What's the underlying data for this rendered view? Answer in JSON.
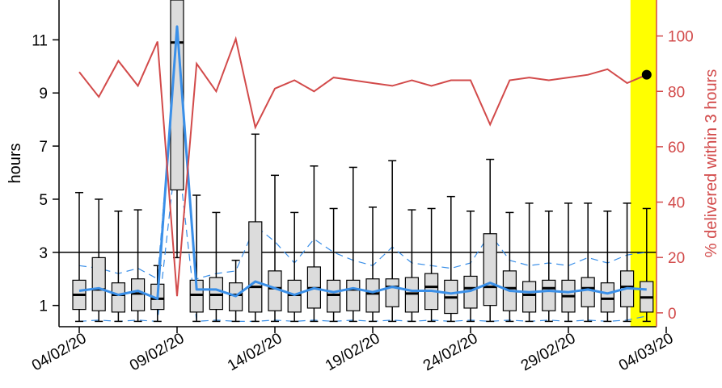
{
  "chart_data": {
    "type": "box",
    "xlabel": "",
    "ylabel": "hours",
    "y2label": "% delivered within 3 hours",
    "ylim": [
      0.2,
      12.5
    ],
    "y2lim": [
      -5,
      113
    ],
    "yticks": [
      1,
      3,
      5,
      7,
      9,
      11
    ],
    "y2ticks": [
      0,
      20,
      40,
      60,
      80,
      100
    ],
    "threshold_hours": 3,
    "x_tick_labels": [
      "04/02/20",
      "09/02/20",
      "14/02/20",
      "19/02/20",
      "24/02/20",
      "29/02/20",
      "04/03/20"
    ],
    "highlight_day": 29,
    "colors": {
      "box_fill": "#dcdcdc",
      "median_line": "#3a8fe8",
      "percent_line": "#d24a4a",
      "highlight": "#ffff00",
      "right_axis": "#d24a4a"
    },
    "boxplots": [
      {
        "low": 0.4,
        "q1": 0.85,
        "median": 1.4,
        "q3": 1.95,
        "high": 5.25
      },
      {
        "low": 0.4,
        "q1": 0.8,
        "median": 1.6,
        "q3": 2.8,
        "high": 5.0
      },
      {
        "low": 0.4,
        "q1": 0.75,
        "median": 1.4,
        "q3": 1.85,
        "high": 4.55
      },
      {
        "low": 0.4,
        "q1": 0.8,
        "median": 1.45,
        "q3": 2.0,
        "high": 4.6
      },
      {
        "low": 0.4,
        "q1": 0.85,
        "median": 1.25,
        "q3": 1.8,
        "high": 2.5
      },
      {
        "low": 2.8,
        "q1": 5.35,
        "median": 10.9,
        "q3": 12.5,
        "high": 12.5
      },
      {
        "low": 0.4,
        "q1": 0.75,
        "median": 1.4,
        "q3": 1.95,
        "high": 5.15
      },
      {
        "low": 0.4,
        "q1": 0.85,
        "median": 1.4,
        "q3": 2.05,
        "high": 4.5
      },
      {
        "low": 0.4,
        "q1": 0.8,
        "median": 1.4,
        "q3": 1.85,
        "high": 2.7
      },
      {
        "low": 0.4,
        "q1": 0.75,
        "median": 1.7,
        "q3": 4.15,
        "high": 7.45
      },
      {
        "low": 0.4,
        "q1": 0.8,
        "median": 1.65,
        "q3": 2.3,
        "high": 5.9
      },
      {
        "low": 0.4,
        "q1": 0.75,
        "median": 1.4,
        "q3": 1.95,
        "high": 4.5
      },
      {
        "low": 0.4,
        "q1": 0.9,
        "median": 1.65,
        "q3": 2.45,
        "high": 6.25
      },
      {
        "low": 0.4,
        "q1": 0.75,
        "median": 1.4,
        "q3": 1.95,
        "high": 4.65
      },
      {
        "low": 0.4,
        "q1": 0.8,
        "median": 1.6,
        "q3": 1.95,
        "high": 6.2
      },
      {
        "low": 0.4,
        "q1": 0.75,
        "median": 1.45,
        "q3": 2.0,
        "high": 4.7
      },
      {
        "low": 0.4,
        "q1": 0.95,
        "median": 1.7,
        "q3": 2.0,
        "high": 6.45
      },
      {
        "low": 0.4,
        "q1": 0.75,
        "median": 1.45,
        "q3": 2.05,
        "high": 4.6
      },
      {
        "low": 0.4,
        "q1": 0.85,
        "median": 1.7,
        "q3": 2.2,
        "high": 4.65
      },
      {
        "low": 0.4,
        "q1": 0.7,
        "median": 1.3,
        "q3": 1.95,
        "high": 5.1
      },
      {
        "low": 0.4,
        "q1": 0.9,
        "median": 1.65,
        "q3": 2.1,
        "high": 4.55
      },
      {
        "low": 0.4,
        "q1": 1.0,
        "median": 1.7,
        "q3": 3.7,
        "high": 6.5
      },
      {
        "low": 0.4,
        "q1": 0.8,
        "median": 1.65,
        "q3": 2.3,
        "high": 4.5
      },
      {
        "low": 0.4,
        "q1": 0.75,
        "median": 1.4,
        "q3": 1.9,
        "high": 4.85
      },
      {
        "low": 0.4,
        "q1": 0.8,
        "median": 1.65,
        "q3": 1.95,
        "high": 4.55
      },
      {
        "low": 0.4,
        "q1": 0.75,
        "median": 1.35,
        "q3": 1.95,
        "high": 4.85
      },
      {
        "low": 0.4,
        "q1": 0.95,
        "median": 1.65,
        "q3": 2.05,
        "high": 4.85
      },
      {
        "low": 0.4,
        "q1": 0.75,
        "median": 1.25,
        "q3": 1.85,
        "high": 4.55
      },
      {
        "low": 0.4,
        "q1": 0.95,
        "median": 1.7,
        "q3": 2.3,
        "high": 4.85
      },
      {
        "low": 0.4,
        "q1": 0.75,
        "median": 1.3,
        "q3": 1.9,
        "high": 4.65
      }
    ],
    "mean_line": [
      1.55,
      1.65,
      1.4,
      1.55,
      1.25,
      11.5,
      1.6,
      1.6,
      1.35,
      1.9,
      1.65,
      1.4,
      1.65,
      1.5,
      1.65,
      1.5,
      1.7,
      1.55,
      1.55,
      1.45,
      1.55,
      1.85,
      1.55,
      1.5,
      1.55,
      1.5,
      1.6,
      1.45,
      1.65,
      1.6
    ],
    "upper_band": [
      2.5,
      2.4,
      2.2,
      2.4,
      2.0,
      11.0,
      2.0,
      2.2,
      2.3,
      4.0,
      3.4,
      2.6,
      3.5,
      3.0,
      2.7,
      2.5,
      3.2,
      2.6,
      2.5,
      2.4,
      2.6,
      3.7,
      2.7,
      2.5,
      2.6,
      2.5,
      2.8,
      2.6,
      2.9,
      3.0
    ],
    "lower_band": [
      0.4,
      0.45,
      0.4,
      0.45,
      0.4,
      7.0,
      0.4,
      0.45,
      0.4,
      0.4,
      0.45,
      0.4,
      0.45,
      0.4,
      0.45,
      0.4,
      0.45,
      0.4,
      0.45,
      0.4,
      0.45,
      0.4,
      0.45,
      0.4,
      0.45,
      0.4,
      0.45,
      0.4,
      0.45,
      0.6
    ],
    "percent_within_3h": [
      87,
      78,
      91,
      82,
      98,
      6,
      90,
      80,
      99,
      67,
      81,
      84,
      80,
      85,
      84,
      83,
      82,
      84,
      82,
      84,
      84,
      68,
      84,
      85,
      84,
      85,
      86,
      88,
      83,
      86
    ],
    "highlight_point_percent": 86
  }
}
